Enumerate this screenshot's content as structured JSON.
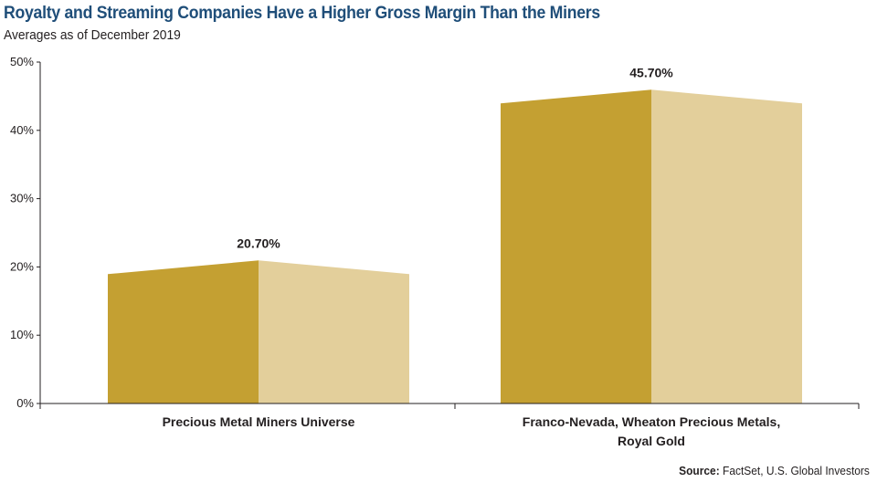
{
  "header": {
    "title": "Royalty and Streaming Companies Have a Higher Gross Margin Than the Miners",
    "subtitle": "Averages as of December 2019"
  },
  "footer": {
    "source_label": "Source:",
    "source_text": "FactSet, U.S. Global Investors"
  },
  "colors": {
    "bar_dark": "#c4a032",
    "bar_light": "#e3cf9b",
    "axis": "#231f20",
    "title": "#1f4e79"
  },
  "chart_data": {
    "type": "bar",
    "title": "Royalty and Streaming Companies Have a Higher Gross Margin Than the Miners",
    "subtitle": "Averages as of December 2019",
    "categories": [
      [
        "Precious Metal Miners Universe"
      ],
      [
        "Franco-Nevada, Wheaton Precious Metals,",
        "Royal Gold"
      ]
    ],
    "values": [
      20.7,
      45.7
    ],
    "data_labels": [
      "20.70%",
      "45.70%"
    ],
    "ylim": [
      0,
      50
    ],
    "yticks": [
      0,
      10,
      20,
      30,
      40,
      50
    ],
    "ytick_labels": [
      "0%",
      "10%",
      "20%",
      "30%",
      "40%",
      "50%"
    ],
    "xlabel": "",
    "ylabel": "",
    "grid": false
  }
}
